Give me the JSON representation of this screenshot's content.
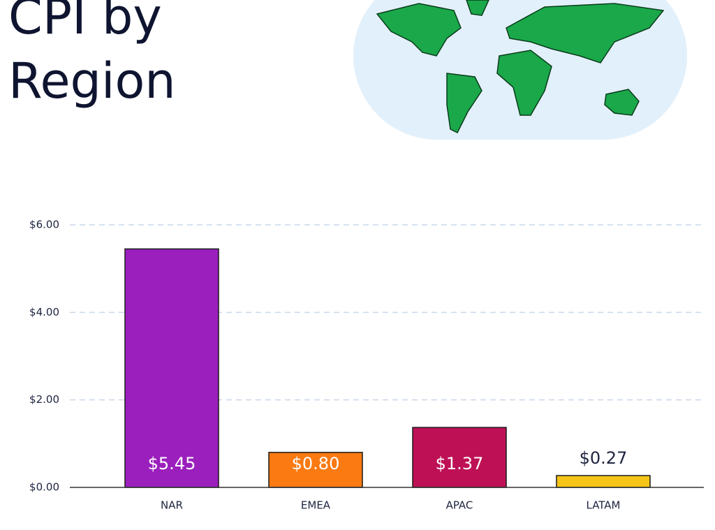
{
  "chart_data": {
    "type": "bar",
    "title": "CPI by Region",
    "categories": [
      "NAR",
      "EMEA",
      "APAC",
      "LATAM"
    ],
    "values": [
      5.45,
      0.8,
      1.37,
      0.27
    ],
    "value_labels": [
      "$5.45",
      "$0.80",
      "$1.37",
      "$0.27"
    ],
    "colors": [
      "#9b1fbd",
      "#fb7a12",
      "#be1155",
      "#f5c518"
    ],
    "ylim": [
      0,
      6
    ],
    "yticks": [
      {
        "value": 0,
        "label": "$0.00"
      },
      {
        "value": 2,
        "label": "$2.00"
      },
      {
        "value": 4,
        "label": "$4.00"
      },
      {
        "value": 6,
        "label": "$6.00"
      }
    ],
    "grid": true
  }
}
